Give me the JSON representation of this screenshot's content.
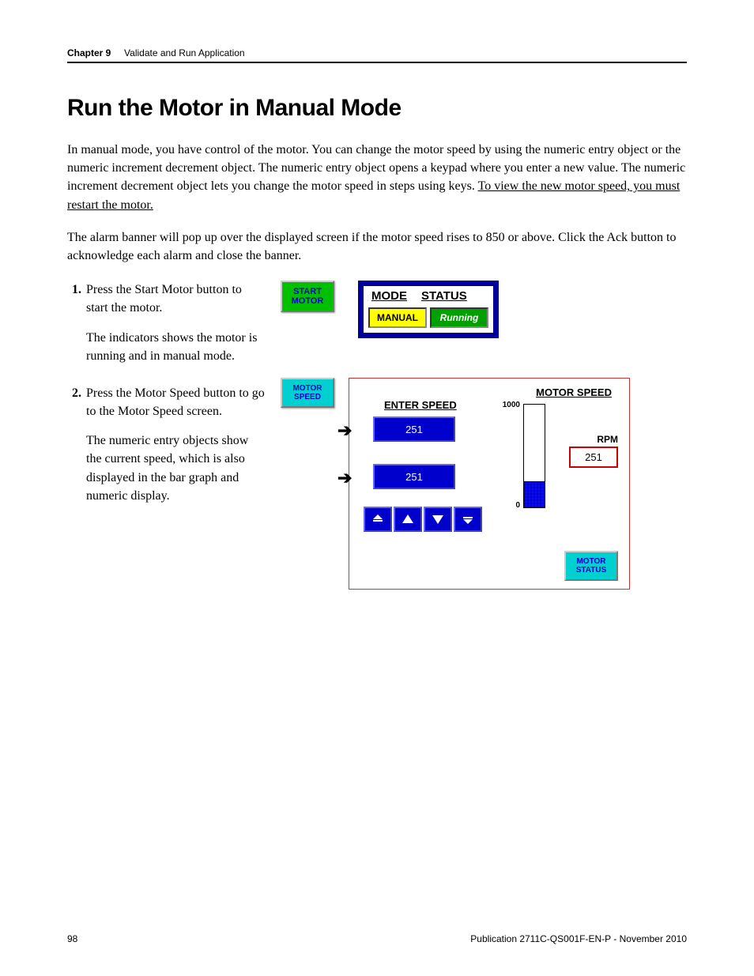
{
  "header": {
    "chapter": "Chapter 9",
    "title": "Validate and Run Application"
  },
  "heading": "Run the Motor in Manual Mode",
  "para1": "In manual mode, you have control of the motor. You can change the motor speed by using the numeric entry object or the numeric increment decrement object. The numeric entry object opens a keypad where you enter a new value. The numeric increment decrement object lets you change the motor speed in steps using keys. ",
  "para1_underlined": "To view the new motor speed, you must restart the motor.",
  "para2": "The alarm banner will pop up over the displayed screen if the motor speed rises to 850 or above. Click the Ack button to acknowledge each alarm and close the banner.",
  "steps": {
    "s1_num": "1.",
    "s1": "Press the Start Motor button to start the motor.",
    "s1_sub": "The indicators shows the motor is running and in manual mode.",
    "s2_num": "2.",
    "s2": "Press the Motor Speed button to go to the Motor Speed screen.",
    "s2_sub": "The numeric entry objects show the current speed, which is also displayed in the bar graph and numeric display."
  },
  "panel1": {
    "start_btn_l1": "START",
    "start_btn_l2": "MOTOR",
    "hdr_mode": "MODE",
    "hdr_status": "STATUS",
    "val_mode": "MANUAL",
    "val_status": "Running",
    "colors": {
      "frame": "#000099",
      "manual_bg": "#ffff00",
      "running_bg": "#00a000",
      "start_bg": "#00c000"
    }
  },
  "panel2": {
    "motor_speed_btn_l1": "MOTOR",
    "motor_speed_btn_l2": "SPEED",
    "title": "MOTOR SPEED",
    "enter_label": "ENTER SPEED",
    "entry1": "251",
    "entry2": "251",
    "bar": {
      "max": 1000,
      "min": 0,
      "value": 251,
      "max_label": "1000",
      "min_label": "0",
      "fill_color": "#4040ff"
    },
    "rpm_label": "RPM",
    "rpm_value": "251",
    "status_btn_l1": "MOTOR",
    "status_btn_l2": "STATUS",
    "colors": {
      "frame": "#cc3333",
      "entry_bg": "#0000cc",
      "btn_bg": "#00d0d0",
      "rpm_border": "#cc0000"
    }
  },
  "footer": {
    "page": "98",
    "pub": "Publication 2711C-QS001F-EN-P - November 2010"
  }
}
